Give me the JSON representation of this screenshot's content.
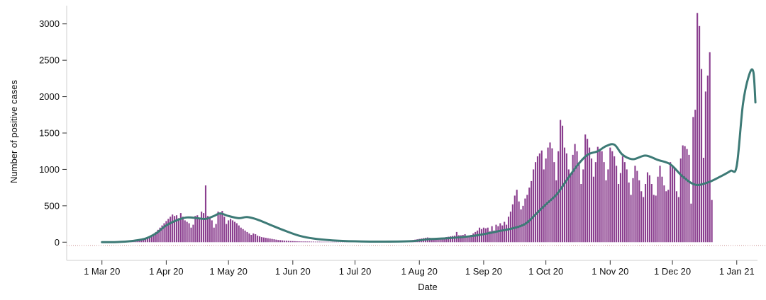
{
  "chart_data": {
    "type": "bar",
    "xlabel": "Date",
    "ylabel": "Number of positive cases",
    "ylim": [
      -250,
      3250
    ],
    "x_range": [
      "2020-02-13",
      "2021-01-11"
    ],
    "y_ticks": [
      {
        "value": 0,
        "label": "0"
      },
      {
        "value": 500,
        "label": "500"
      },
      {
        "value": 1000,
        "label": "1000"
      },
      {
        "value": 1500,
        "label": "1500"
      },
      {
        "value": 2000,
        "label": "2000"
      },
      {
        "value": 2500,
        "label": "2500"
      },
      {
        "value": 3000,
        "label": "3000"
      }
    ],
    "x_ticks": [
      {
        "date": "2020-03-01",
        "label": "1 Mar 20"
      },
      {
        "date": "2020-04-01",
        "label": "1 Apr 20"
      },
      {
        "date": "2020-05-01",
        "label": "1 May 20"
      },
      {
        "date": "2020-06-01",
        "label": "1 Jun 20"
      },
      {
        "date": "2020-07-01",
        "label": "1 Jul 20"
      },
      {
        "date": "2020-08-01",
        "label": "1 Aug 20"
      },
      {
        "date": "2020-09-01",
        "label": "1 Sep 20"
      },
      {
        "date": "2020-10-01",
        "label": "1 Oct 20"
      },
      {
        "date": "2020-11-01",
        "label": "1 Nov 20"
      },
      {
        "date": "2020-12-01",
        "label": "1 Dec 20"
      },
      {
        "date": "2021-01-01",
        "label": "1 Jan 21"
      }
    ],
    "bar_series": {
      "color": "#8b3f8f",
      "start_date": "2020-03-01",
      "values": [
        0,
        0,
        0,
        1,
        1,
        2,
        3,
        4,
        5,
        6,
        8,
        10,
        12,
        15,
        20,
        25,
        30,
        35,
        40,
        38,
        42,
        45,
        50,
        60,
        80,
        110,
        140,
        170,
        200,
        230,
        260,
        290,
        320,
        350,
        380,
        360,
        370,
        330,
        400,
        350,
        300,
        280,
        260,
        200,
        240,
        360,
        370,
        320,
        420,
        400,
        780,
        360,
        330,
        300,
        200,
        250,
        420,
        400,
        430,
        350,
        250,
        300,
        320,
        300,
        280,
        260,
        230,
        200,
        180,
        160,
        140,
        120,
        100,
        120,
        110,
        90,
        80,
        70,
        65,
        60,
        55,
        50,
        45,
        40,
        35,
        30,
        28,
        25,
        22,
        20,
        18,
        16,
        15,
        14,
        13,
        12,
        11,
        10,
        10,
        9,
        9,
        8,
        8,
        7,
        7,
        7,
        6,
        6,
        6,
        6,
        5,
        5,
        5,
        5,
        5,
        5,
        5,
        5,
        5,
        5,
        5,
        5,
        5,
        5,
        5,
        5,
        5,
        6,
        6,
        6,
        7,
        7,
        7,
        8,
        8,
        9,
        9,
        10,
        10,
        11,
        12,
        13,
        14,
        15,
        16,
        18,
        20,
        22,
        25,
        28,
        30,
        35,
        40,
        45,
        50,
        55,
        60,
        65,
        60,
        55,
        50,
        45,
        50,
        55,
        60,
        65,
        70,
        75,
        80,
        85,
        90,
        140,
        95,
        95,
        100,
        110,
        90,
        80,
        100,
        120,
        140,
        160,
        200,
        180,
        200,
        190,
        200,
        150,
        220,
        160,
        240,
        220,
        260,
        230,
        280,
        240,
        350,
        420,
        520,
        640,
        720,
        560,
        450,
        500,
        600,
        650,
        750,
        840,
        1000,
        1100,
        1180,
        1220,
        1260,
        1000,
        1150,
        1300,
        1370,
        1290,
        1100,
        850,
        1250,
        1680,
        1600,
        1300,
        1220,
        1000,
        950,
        1200,
        1350,
        1250,
        1100,
        800,
        1000,
        1480,
        1420,
        1300,
        1150,
        900,
        1100,
        1310,
        1280,
        1250,
        1100,
        850,
        1000,
        1300,
        1250,
        1180,
        1050,
        800,
        950,
        1180,
        1100,
        1000,
        820,
        650,
        880,
        1050,
        980,
        850,
        700,
        620,
        800,
        960,
        920,
        800,
        650,
        640,
        900,
        1050,
        900,
        780,
        700,
        720,
        1100,
        1050,
        1030,
        700,
        620,
        1150,
        1330,
        1320,
        1280,
        1200,
        530,
        1720,
        1820,
        3150,
        2970,
        2380,
        1160,
        2070,
        2290,
        2610,
        580
      ]
    },
    "line_series": {
      "color": "#3d7a76",
      "points": [
        [
          "2020-03-01",
          0
        ],
        [
          "2020-03-08",
          2
        ],
        [
          "2020-03-15",
          15
        ],
        [
          "2020-03-22",
          50
        ],
        [
          "2020-03-27",
          120
        ],
        [
          "2020-04-01",
          230
        ],
        [
          "2020-04-06",
          300
        ],
        [
          "2020-04-11",
          340
        ],
        [
          "2020-04-16",
          330
        ],
        [
          "2020-04-20",
          320
        ],
        [
          "2020-04-24",
          360
        ],
        [
          "2020-04-27",
          395
        ],
        [
          "2020-05-01",
          360
        ],
        [
          "2020-05-06",
          330
        ],
        [
          "2020-05-10",
          345
        ],
        [
          "2020-05-15",
          310
        ],
        [
          "2020-05-21",
          240
        ],
        [
          "2020-05-28",
          160
        ],
        [
          "2020-06-04",
          90
        ],
        [
          "2020-06-11",
          50
        ],
        [
          "2020-06-20",
          25
        ],
        [
          "2020-07-01",
          12
        ],
        [
          "2020-07-15",
          8
        ],
        [
          "2020-07-29",
          15
        ],
        [
          "2020-08-05",
          40
        ],
        [
          "2020-08-15",
          55
        ],
        [
          "2020-08-25",
          80
        ],
        [
          "2020-09-01",
          110
        ],
        [
          "2020-09-08",
          150
        ],
        [
          "2020-09-15",
          190
        ],
        [
          "2020-09-21",
          250
        ],
        [
          "2020-09-26",
          380
        ],
        [
          "2020-10-01",
          520
        ],
        [
          "2020-10-06",
          650
        ],
        [
          "2020-10-11",
          850
        ],
        [
          "2020-10-16",
          1050
        ],
        [
          "2020-10-21",
          1200
        ],
        [
          "2020-10-26",
          1250
        ],
        [
          "2020-10-30",
          1320
        ],
        [
          "2020-11-03",
          1340
        ],
        [
          "2020-11-07",
          1200
        ],
        [
          "2020-11-12",
          1140
        ],
        [
          "2020-11-18",
          1190
        ],
        [
          "2020-11-24",
          1130
        ],
        [
          "2020-11-30",
          1070
        ],
        [
          "2020-12-06",
          900
        ],
        [
          "2020-12-12",
          790
        ],
        [
          "2020-12-18",
          820
        ],
        [
          "2020-12-24",
          900
        ],
        [
          "2020-12-29",
          980
        ],
        [
          "2021-01-01",
          1050
        ],
        [
          "2021-01-04",
          1900
        ],
        [
          "2021-01-07",
          2300
        ],
        [
          "2021-01-09",
          2340
        ],
        [
          "2021-01-10",
          1920
        ]
      ]
    }
  }
}
